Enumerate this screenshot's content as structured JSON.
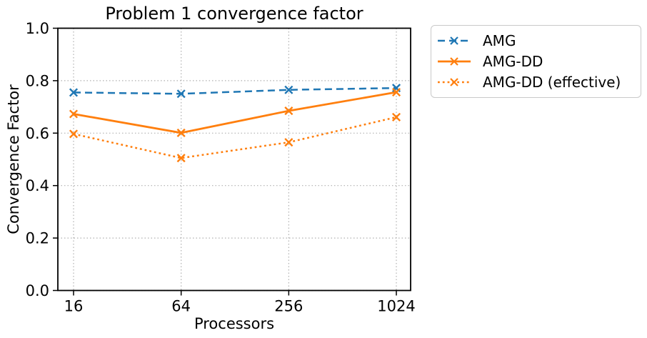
{
  "chart_data": {
    "type": "line",
    "title": "Problem 1 convergence factor",
    "xlabel": "Processors",
    "ylabel": "Convergence Factor",
    "x_categories": [
      "16",
      "64",
      "256",
      "1024"
    ],
    "y_tick_labels": [
      "0.0",
      "0.2",
      "0.4",
      "0.6",
      "0.8",
      "1.0"
    ],
    "y_tick_values": [
      0.0,
      0.2,
      0.4,
      0.6,
      0.8,
      1.0
    ],
    "ylim": [
      0.0,
      1.0
    ],
    "grid": true,
    "grid_color": "#b0b0b0",
    "legend_position": "outside upper right",
    "series": [
      {
        "name": "AMG",
        "color": "#1f77b4",
        "line_style": "dashed",
        "marker": "x",
        "values": [
          0.755,
          0.75,
          0.765,
          0.772
        ]
      },
      {
        "name": "AMG-DD",
        "color": "#ff7f0e",
        "line_style": "solid",
        "marker": "x",
        "values": [
          0.673,
          0.601,
          0.685,
          0.756
        ]
      },
      {
        "name": "AMG-DD (effective)",
        "color": "#ff7f0e",
        "line_style": "dotted",
        "marker": "x",
        "values": [
          0.597,
          0.505,
          0.565,
          0.661
        ]
      }
    ]
  }
}
